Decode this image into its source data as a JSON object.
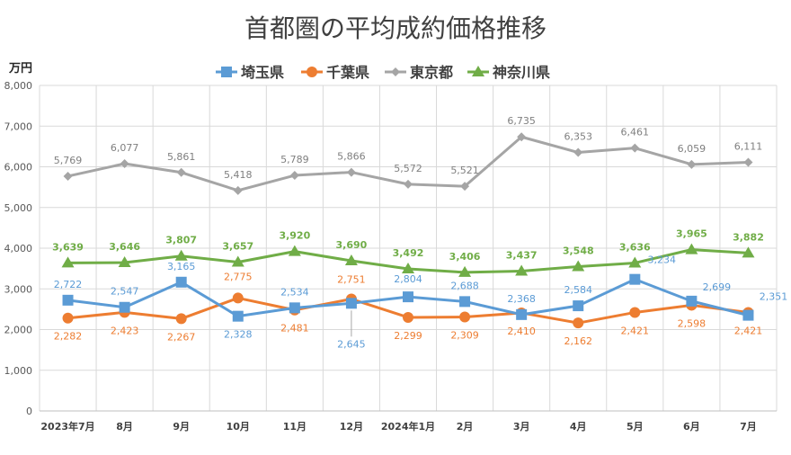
{
  "chart_data": {
    "type": "line",
    "title": "首都圏の平均成約価格推移",
    "ylabel": "万円",
    "xlabel": "",
    "ylim": [
      0,
      8000
    ],
    "yticks": [
      "0",
      "1,000",
      "2,000",
      "3,000",
      "4,000",
      "5,000",
      "6,000",
      "7,000",
      "8,000"
    ],
    "grid": true,
    "legend_position": "top",
    "categories": [
      "2023年7月",
      "8月",
      "9月",
      "10月",
      "11月",
      "12月",
      "2024年1月",
      "2月",
      "3月",
      "4月",
      "5月",
      "6月",
      "7月"
    ],
    "series": [
      {
        "name": "埼玉県",
        "color": "#5b9bd5",
        "marker": "square",
        "values": [
          2722,
          2547,
          3165,
          2328,
          2534,
          2645,
          2804,
          2688,
          2368,
          2584,
          3234,
          2699,
          2351
        ],
        "labels": [
          "2,722",
          "2,547",
          "3,165",
          "2,328",
          "2,534",
          "2,645",
          "2,804",
          "2,688",
          "2,368",
          "2,584",
          "3,234",
          "2,699",
          "2,351"
        ]
      },
      {
        "name": "千葉県",
        "color": "#ed7d31",
        "marker": "circle",
        "values": [
          2282,
          2423,
          2267,
          2775,
          2481,
          2751,
          2299,
          2309,
          2410,
          2162,
          2421,
          2598,
          2421
        ],
        "labels": [
          "2,282",
          "2,423",
          "2,267",
          "2,775",
          "2,481",
          "2,751",
          "2,299",
          "2,309",
          "2,410",
          "2,162",
          "2,421",
          "2,598",
          "2,421"
        ]
      },
      {
        "name": "東京都",
        "color": "#a5a5a5",
        "marker": "diamond",
        "values": [
          5769,
          6077,
          5861,
          5418,
          5789,
          5866,
          5572,
          5521,
          6735,
          6353,
          6461,
          6059,
          6111
        ],
        "labels": [
          "5,769",
          "6,077",
          "5,861",
          "5,418",
          "5,789",
          "5,866",
          "5,572",
          "5,521",
          "6,735",
          "6,353",
          "6,461",
          "6,059",
          "6,111"
        ]
      },
      {
        "name": "神奈川県",
        "color": "#70ad47",
        "marker": "triangle",
        "values": [
          3639,
          3646,
          3807,
          3657,
          3920,
          3690,
          3492,
          3406,
          3437,
          3548,
          3636,
          3965,
          3882
        ],
        "labels": [
          "3,639",
          "3,646",
          "3,807",
          "3,657",
          "3,920",
          "3,690",
          "3,492",
          "3,406",
          "3,437",
          "3,548",
          "3,636",
          "3,965",
          "3,882"
        ]
      }
    ]
  }
}
